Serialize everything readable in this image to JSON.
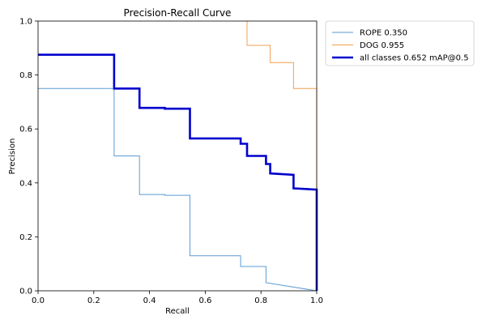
{
  "chart_data": {
    "type": "line",
    "title": "Precision-Recall Curve",
    "xlabel": "Recall",
    "ylabel": "Precision",
    "xlim": [
      0,
      1
    ],
    "ylim": [
      0,
      1
    ],
    "x_ticks": [
      "0.0",
      "0.2",
      "0.4",
      "0.6",
      "0.8",
      "1.0"
    ],
    "y_ticks": [
      "0.0",
      "0.2",
      "0.4",
      "0.6",
      "0.8",
      "1.0"
    ],
    "grid": false,
    "legend_position": "outside-top-right",
    "series": [
      {
        "name": "ROPE 0.350",
        "color": "#5b9bd5",
        "width": "thin",
        "points": [
          [
            0,
            0.75
          ],
          [
            0.273,
            0.75
          ],
          [
            0.273,
            0.5
          ],
          [
            0.364,
            0.5
          ],
          [
            0.364,
            0.357
          ],
          [
            0.455,
            0.357
          ],
          [
            0.455,
            0.354
          ],
          [
            0.545,
            0.354
          ],
          [
            0.545,
            0.13
          ],
          [
            0.727,
            0.13
          ],
          [
            0.727,
            0.09
          ],
          [
            0.818,
            0.09
          ],
          [
            0.818,
            0.03
          ],
          [
            1.0,
            0.0
          ]
        ]
      },
      {
        "name": "DOG 0.955",
        "color": "#f0a050",
        "width": "thin",
        "points": [
          [
            0.75,
            1.0
          ],
          [
            0.75,
            0.91
          ],
          [
            0.833,
            0.91
          ],
          [
            0.833,
            0.846
          ],
          [
            0.917,
            0.846
          ],
          [
            0.917,
            0.75
          ],
          [
            1.0,
            0.75
          ],
          [
            1.0,
            0.0
          ]
        ]
      },
      {
        "name": "all classes 0.652 mAP@0.5",
        "color": "#0000cd",
        "width": "thick",
        "points": [
          [
            0,
            0.875
          ],
          [
            0.273,
            0.875
          ],
          [
            0.273,
            0.75
          ],
          [
            0.364,
            0.75
          ],
          [
            0.364,
            0.678
          ],
          [
            0.455,
            0.678
          ],
          [
            0.455,
            0.675
          ],
          [
            0.545,
            0.675
          ],
          [
            0.545,
            0.565
          ],
          [
            0.727,
            0.565
          ],
          [
            0.727,
            0.545
          ],
          [
            0.75,
            0.545
          ],
          [
            0.75,
            0.5
          ],
          [
            0.818,
            0.5
          ],
          [
            0.818,
            0.47
          ],
          [
            0.833,
            0.47
          ],
          [
            0.833,
            0.435
          ],
          [
            0.917,
            0.43
          ],
          [
            0.917,
            0.38
          ],
          [
            1.0,
            0.375
          ],
          [
            1.0,
            0.0
          ]
        ]
      }
    ]
  }
}
